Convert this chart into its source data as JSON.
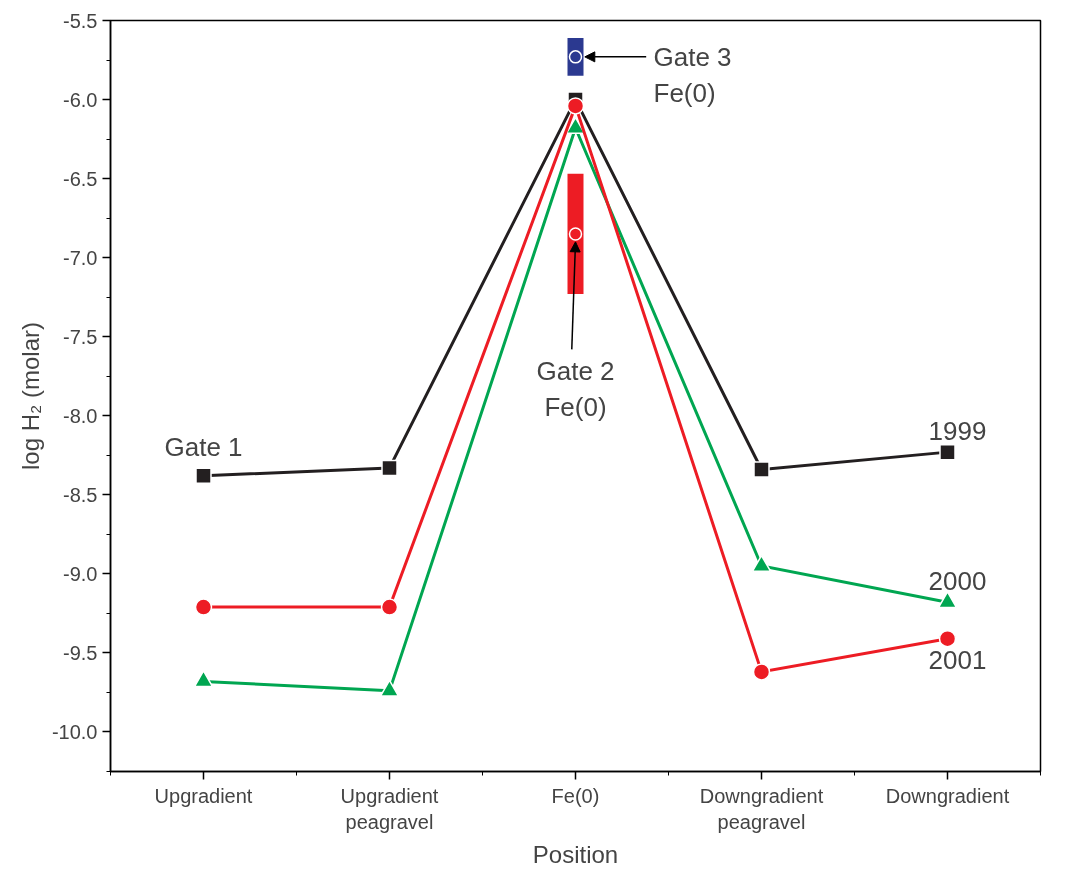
{
  "chart_data": {
    "type": "line",
    "xlabel": "Position",
    "ylabel": "log H₂ (molar)",
    "categories": [
      "Upgradient",
      "Upgradient\npeagravel",
      "Fe(0)",
      "Downgradient\npeagravel",
      "Downgradient"
    ],
    "ylim": [
      -10.25,
      -5.5
    ],
    "yticks": [
      {
        "value": -10,
        "label": "-10.0"
      },
      -9.5,
      {
        "value": -9,
        "label": "-9.0"
      },
      -8.5,
      {
        "value": -8,
        "label": "-8.0"
      },
      -7.5,
      {
        "value": -7,
        "label": "-7.0"
      },
      -6.5,
      {
        "value": -6,
        "label": "-6.0"
      },
      -5.5
    ],
    "grid": false,
    "series": [
      {
        "name": "1999",
        "color": "#231f20",
        "marker": "square",
        "values": [
          -8.38,
          -8.33,
          -6.0,
          -8.34,
          -8.23
        ]
      },
      {
        "name": "2000",
        "color": "#00a651",
        "marker": "triangle",
        "values": [
          -9.68,
          -9.74,
          -6.18,
          -8.95,
          -9.18
        ]
      },
      {
        "name": "2001",
        "color": "#ed1c24",
        "marker": "circle",
        "values": [
          -9.21,
          -9.21,
          -6.04,
          -9.62,
          -9.41
        ]
      },
      {
        "type": "scatter",
        "marker": "circle",
        "color": "#2b3990",
        "values": [
          null,
          null,
          -5.73,
          null,
          null
        ],
        "errors": [
          null,
          null,
          0.12,
          null,
          null
        ]
      },
      {
        "type": "scatter",
        "marker": "circle",
        "color": "#ed1c24",
        "values": [
          null,
          null,
          -6.85,
          null,
          null
        ],
        "errors": [
          null,
          null,
          0.38,
          null,
          null
        ]
      }
    ],
    "annotations": [
      {
        "text": "Gate 1",
        "x": "Upgradient",
        "y": -8.38
      },
      {
        "text": "Gate 3\nFe(0)",
        "x": "Fe(0)",
        "y": -5.73
      },
      {
        "text": "Gate 2\nFe(0)",
        "x": "Fe(0)",
        "y": -6.85
      }
    ]
  }
}
